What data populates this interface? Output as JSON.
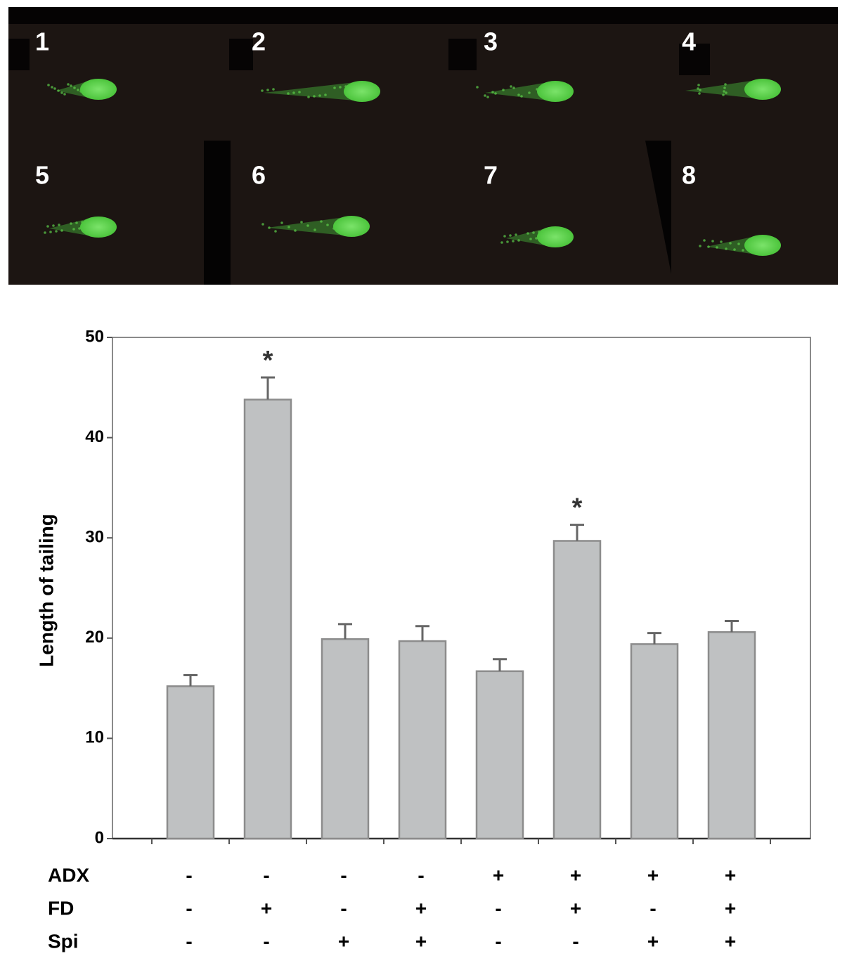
{
  "image_panel": {
    "labels": [
      "1",
      "2",
      "3",
      "4",
      "5",
      "6",
      "7",
      "8"
    ]
  },
  "chart_data": {
    "type": "bar",
    "y_label": "Length of tailing",
    "values": [
      15.2,
      43.8,
      19.9,
      19.7,
      16.7,
      29.7,
      19.4,
      20.6
    ],
    "errors": [
      1.1,
      2.2,
      1.5,
      1.5,
      1.2,
      1.6,
      1.1,
      1.1
    ],
    "markers": [
      null,
      "*",
      null,
      null,
      null,
      "*",
      null,
      null
    ],
    "color": "#bfc1c2",
    "ylim": [
      0,
      50
    ],
    "yticks": [
      0,
      10,
      20,
      30,
      40,
      50
    ],
    "conditions": [
      {
        "name": "ADX",
        "values": [
          "-",
          "-",
          "-",
          "-",
          "+",
          "+",
          "+",
          "+"
        ]
      },
      {
        "name": "FD",
        "values": [
          "-",
          "+",
          "-",
          "+",
          "-",
          "+",
          "-",
          "+"
        ]
      },
      {
        "name": "Spi",
        "values": [
          "-",
          "-",
          "+",
          "+",
          "-",
          "-",
          "+",
          "+"
        ]
      }
    ]
  }
}
